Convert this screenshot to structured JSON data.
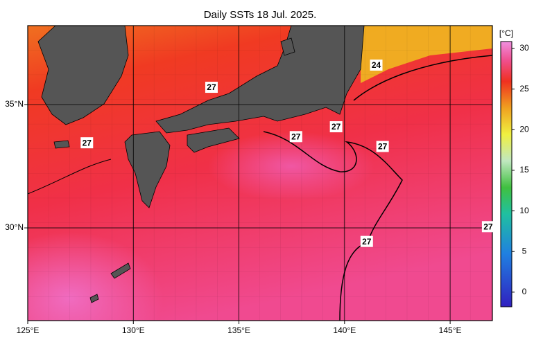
{
  "chart_data": {
    "type": "map",
    "title": "Daily SSTs 18 Jul. 2025.",
    "xlim": [
      125,
      147
    ],
    "ylim": [
      26.24,
      38.2
    ],
    "xticks": [
      {
        "value": 125,
        "label": "125°E"
      },
      {
        "value": 130,
        "label": "130°E"
      },
      {
        "value": 135,
        "label": "135°E"
      },
      {
        "value": 140,
        "label": "140°E"
      },
      {
        "value": 145,
        "label": "145°E"
      }
    ],
    "yticks": [
      {
        "value": 30,
        "label": "30°N"
      },
      {
        "value": 35,
        "label": "35°N"
      }
    ],
    "grid": true,
    "colorbar": {
      "label": "[°C]",
      "lim": [
        -1.8,
        30.85
      ],
      "ticks": [
        0,
        5,
        10,
        15,
        20,
        25,
        30
      ]
    },
    "contour_labels": [
      {
        "value": 27,
        "lon": 133.7,
        "lat": 35.7
      },
      {
        "value": 27,
        "lon": 127.8,
        "lat": 33.45
      },
      {
        "value": 27,
        "lon": 137.7,
        "lat": 33.7
      },
      {
        "value": 27,
        "lon": 139.6,
        "lat": 34.1
      },
      {
        "value": 27,
        "lon": 141.8,
        "lat": 33.3
      },
      {
        "value": 27,
        "lon": 141.05,
        "lat": 29.45
      },
      {
        "value": 27,
        "lon": 146.8,
        "lat": 30.05
      },
      {
        "value": 24,
        "lon": 141.5,
        "lat": 36.6
      }
    ]
  }
}
